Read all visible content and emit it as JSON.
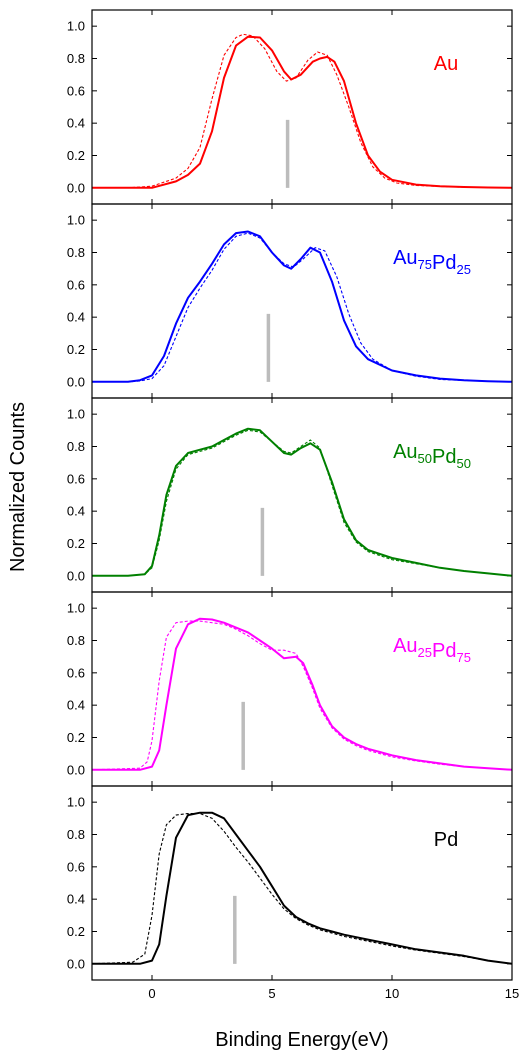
{
  "chart_data": {
    "type": "line",
    "xlabel": "Binding Energy(eV)",
    "ylabel": "Normalized Counts",
    "xlim": [
      -2.5,
      15
    ],
    "ylim": [
      -0.1,
      1.1
    ],
    "x_ticks": [
      0,
      5,
      10,
      15
    ],
    "y_ticks": [
      0.0,
      0.2,
      0.4,
      0.6,
      0.8,
      1.0
    ],
    "panels": [
      {
        "label_main": "Au",
        "label_sub1": "",
        "label_mid": "",
        "label_sub2": "",
        "color": "#ff0000",
        "marker_x": 5.65,
        "marker_height": 0.42,
        "series": [
          {
            "style": "solid",
            "x": [
              -2.5,
              -1,
              0,
              1,
              1.5,
              2,
              2.5,
              3,
              3.5,
              4,
              4.5,
              5,
              5.5,
              5.8,
              6.2,
              6.7,
              7,
              7.3,
              7.6,
              8,
              8.5,
              9,
              9.5,
              10,
              11,
              12,
              13,
              14,
              15
            ],
            "y": [
              0,
              0,
              0,
              0.04,
              0.08,
              0.15,
              0.35,
              0.68,
              0.88,
              0.935,
              0.93,
              0.85,
              0.72,
              0.67,
              0.7,
              0.78,
              0.8,
              0.81,
              0.78,
              0.66,
              0.4,
              0.2,
              0.1,
              0.05,
              0.02,
              0.01,
              0.005,
              0.002,
              0
            ]
          },
          {
            "style": "dashed",
            "x": [
              -2.5,
              -1,
              0,
              1,
              1.5,
              2,
              2.5,
              3,
              3.5,
              3.8,
              4.2,
              4.7,
              5.2,
              5.6,
              6,
              6.5,
              6.9,
              7.3,
              7.7,
              8.2,
              8.7,
              9.2,
              9.7,
              10.2,
              11,
              12,
              13,
              14,
              15
            ],
            "y": [
              0,
              0,
              0.01,
              0.06,
              0.12,
              0.25,
              0.55,
              0.82,
              0.93,
              0.95,
              0.94,
              0.86,
              0.72,
              0.66,
              0.68,
              0.79,
              0.84,
              0.82,
              0.7,
              0.5,
              0.28,
              0.13,
              0.06,
              0.03,
              0.015,
              0.008,
              0.004,
              0.002,
              0
            ]
          }
        ]
      },
      {
        "label_main": "Au",
        "label_sub1": "75",
        "label_mid": "Pd",
        "label_sub2": "25",
        "color": "#0000ff",
        "marker_x": 4.85,
        "marker_height": 0.42,
        "series": [
          {
            "style": "solid",
            "x": [
              -2.5,
              -1,
              -0.5,
              0,
              0.5,
              1,
              1.5,
              2,
              2.5,
              3,
              3.5,
              4,
              4.5,
              5,
              5.5,
              5.8,
              6.2,
              6.6,
              7,
              7.5,
              8,
              8.5,
              9,
              10,
              11,
              12,
              13,
              14,
              15
            ],
            "y": [
              0,
              0,
              0.01,
              0.04,
              0.16,
              0.36,
              0.52,
              0.62,
              0.73,
              0.85,
              0.92,
              0.93,
              0.9,
              0.8,
              0.72,
              0.7,
              0.76,
              0.83,
              0.8,
              0.62,
              0.38,
              0.22,
              0.14,
              0.07,
              0.04,
              0.02,
              0.01,
              0.004,
              0
            ]
          },
          {
            "style": "dashed",
            "x": [
              -2.5,
              -1,
              -0.5,
              0,
              0.5,
              1,
              1.5,
              2,
              2.5,
              3,
              3.5,
              4,
              4.5,
              5,
              5.5,
              5.9,
              6.3,
              6.8,
              7.2,
              7.7,
              8.2,
              8.7,
              9.2,
              10,
              11,
              12,
              13,
              14,
              15
            ],
            "y": [
              0,
              0,
              0.005,
              0.02,
              0.1,
              0.28,
              0.46,
              0.58,
              0.69,
              0.82,
              0.9,
              0.92,
              0.89,
              0.8,
              0.73,
              0.71,
              0.76,
              0.83,
              0.81,
              0.65,
              0.42,
              0.24,
              0.14,
              0.07,
              0.035,
              0.015,
              0.008,
              0.003,
              0
            ]
          }
        ]
      },
      {
        "label_main": "Au",
        "label_sub1": "50",
        "label_mid": "Pd",
        "label_sub2": "50",
        "color": "#008000",
        "marker_x": 4.6,
        "marker_height": 0.42,
        "series": [
          {
            "style": "solid",
            "x": [
              -2.5,
              -1,
              -0.3,
              0,
              0.3,
              0.6,
              1,
              1.5,
              2,
              2.5,
              3,
              3.5,
              4,
              4.5,
              5,
              5.5,
              5.8,
              6.2,
              6.6,
              7,
              7.5,
              8,
              8.5,
              9,
              10,
              11,
              12,
              13,
              14,
              15
            ],
            "y": [
              0,
              0,
              0.01,
              0.06,
              0.25,
              0.5,
              0.68,
              0.76,
              0.78,
              0.8,
              0.84,
              0.88,
              0.91,
              0.9,
              0.83,
              0.76,
              0.75,
              0.79,
              0.82,
              0.78,
              0.58,
              0.35,
              0.22,
              0.16,
              0.11,
              0.08,
              0.05,
              0.03,
              0.015,
              0
            ]
          },
          {
            "style": "dashed",
            "x": [
              -2.5,
              -1,
              -0.3,
              0,
              0.3,
              0.6,
              1,
              1.5,
              2,
              2.5,
              3,
              3.5,
              4,
              4.5,
              5,
              5.5,
              5.8,
              6.2,
              6.6,
              7,
              7.5,
              8,
              8.5,
              9,
              10,
              11,
              12,
              13,
              14,
              15
            ],
            "y": [
              0,
              0,
              0.01,
              0.05,
              0.22,
              0.46,
              0.66,
              0.75,
              0.77,
              0.79,
              0.83,
              0.87,
              0.9,
              0.89,
              0.83,
              0.77,
              0.76,
              0.8,
              0.84,
              0.79,
              0.56,
              0.33,
              0.21,
              0.15,
              0.1,
              0.075,
              0.05,
              0.03,
              0.015,
              0
            ]
          }
        ]
      },
      {
        "label_main": "Au",
        "label_sub1": "25",
        "label_mid": "Pd",
        "label_sub2": "75",
        "color": "#ff00ff",
        "marker_x": 3.8,
        "marker_height": 0.42,
        "series": [
          {
            "style": "solid",
            "x": [
              -2.5,
              -0.5,
              0,
              0.3,
              0.6,
              1,
              1.5,
              2,
              2.5,
              3,
              3.5,
              4,
              4.5,
              5,
              5.5,
              6,
              6.3,
              6.7,
              7,
              7.5,
              8,
              8.5,
              9,
              10,
              11,
              12,
              13,
              14,
              15
            ],
            "y": [
              0,
              0,
              0.02,
              0.12,
              0.4,
              0.75,
              0.9,
              0.935,
              0.93,
              0.91,
              0.88,
              0.85,
              0.8,
              0.75,
              0.69,
              0.7,
              0.66,
              0.52,
              0.4,
              0.27,
              0.2,
              0.16,
              0.13,
              0.09,
              0.06,
              0.04,
              0.02,
              0.01,
              0
            ]
          },
          {
            "style": "dashed",
            "x": [
              -2.5,
              -0.5,
              -0.2,
              0,
              0.3,
              0.6,
              1,
              1.5,
              2,
              2.5,
              3,
              3.5,
              4,
              4.5,
              5,
              5.5,
              6,
              6.3,
              6.7,
              7,
              7.5,
              8,
              8.5,
              9,
              10,
              11,
              12,
              13,
              14,
              15
            ],
            "y": [
              0,
              0.01,
              0.05,
              0.18,
              0.55,
              0.82,
              0.91,
              0.92,
              0.92,
              0.91,
              0.9,
              0.87,
              0.83,
              0.78,
              0.74,
              0.74,
              0.72,
              0.64,
              0.5,
              0.38,
              0.26,
              0.19,
              0.15,
              0.12,
              0.08,
              0.055,
              0.035,
              0.02,
              0.01,
              0
            ]
          }
        ]
      },
      {
        "label_main": "Pd",
        "label_sub1": "",
        "label_mid": "",
        "label_sub2": "",
        "color": "#000000",
        "marker_x": 3.45,
        "marker_height": 0.42,
        "series": [
          {
            "style": "solid",
            "x": [
              -2.5,
              -0.5,
              0,
              0.3,
              0.6,
              1,
              1.5,
              2,
              2.5,
              3,
              3.5,
              4,
              4.5,
              5,
              5.5,
              6,
              6.5,
              7,
              7.5,
              8,
              9,
              10,
              11,
              12,
              13,
              14,
              15
            ],
            "y": [
              0,
              0,
              0.02,
              0.12,
              0.42,
              0.78,
              0.92,
              0.935,
              0.935,
              0.9,
              0.8,
              0.7,
              0.6,
              0.48,
              0.36,
              0.29,
              0.25,
              0.22,
              0.2,
              0.18,
              0.15,
              0.12,
              0.09,
              0.07,
              0.05,
              0.02,
              0
            ]
          },
          {
            "style": "dashed",
            "x": [
              -2.5,
              -0.8,
              -0.3,
              0,
              0.3,
              0.6,
              1,
              1.5,
              2,
              2.5,
              3,
              3.5,
              4,
              4.5,
              5,
              5.5,
              6,
              6.5,
              7,
              7.5,
              8,
              9,
              10,
              11,
              12,
              13,
              14,
              15
            ],
            "y": [
              0,
              0.01,
              0.06,
              0.3,
              0.68,
              0.86,
              0.92,
              0.93,
              0.93,
              0.9,
              0.82,
              0.72,
              0.63,
              0.53,
              0.43,
              0.34,
              0.28,
              0.24,
              0.21,
              0.19,
              0.17,
              0.14,
              0.11,
              0.085,
              0.065,
              0.045,
              0.02,
              0
            ]
          }
        ]
      }
    ]
  }
}
